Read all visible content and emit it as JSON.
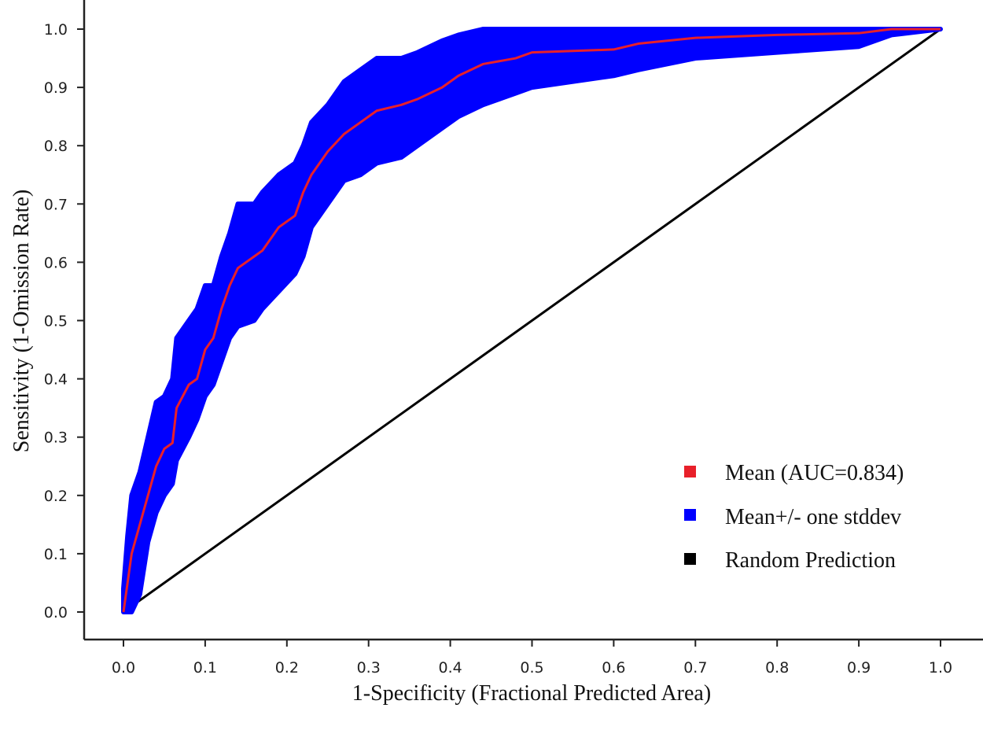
{
  "chart_data": {
    "type": "line",
    "xlabel": "1-Specificity (Fractional Predicted Area)",
    "ylabel": "Sensitivity (1-Omission Rate)",
    "xlim": [
      0,
      1
    ],
    "ylim": [
      0,
      1
    ],
    "x_ticks": [
      "0.0",
      "0.1",
      "0.2",
      "0.3",
      "0.4",
      "0.5",
      "0.6",
      "0.7",
      "0.8",
      "0.9",
      "1.0"
    ],
    "y_ticks": [
      "0.0",
      "0.1",
      "0.2",
      "0.3",
      "0.4",
      "0.5",
      "0.6",
      "0.7",
      "0.8",
      "0.9",
      "1.0"
    ],
    "grid": false,
    "legend_position": "bottom-right",
    "colors": {
      "mean": "#e8202a",
      "band": "#0000ff",
      "random": "#000000"
    },
    "series": [
      {
        "name": "Mean (AUC=0.834)",
        "x": [
          0,
          0.005,
          0.01,
          0.02,
          0.03,
          0.04,
          0.05,
          0.06,
          0.065,
          0.08,
          0.09,
          0.1,
          0.11,
          0.12,
          0.13,
          0.14,
          0.16,
          0.17,
          0.19,
          0.21,
          0.22,
          0.23,
          0.25,
          0.27,
          0.29,
          0.31,
          0.34,
          0.36,
          0.39,
          0.41,
          0.44,
          0.48,
          0.5,
          0.6,
          0.63,
          0.7,
          0.8,
          0.9,
          0.94,
          1.0
        ],
        "y": [
          0,
          0.05,
          0.1,
          0.15,
          0.2,
          0.25,
          0.28,
          0.29,
          0.35,
          0.39,
          0.4,
          0.45,
          0.47,
          0.52,
          0.56,
          0.59,
          0.61,
          0.62,
          0.66,
          0.68,
          0.72,
          0.75,
          0.79,
          0.82,
          0.84,
          0.86,
          0.87,
          0.88,
          0.9,
          0.92,
          0.94,
          0.95,
          0.96,
          0.965,
          0.975,
          0.985,
          0.99,
          0.993,
          1.0,
          1.0
        ]
      },
      {
        "name": "Mean+/- one stddev",
        "x": [
          0,
          0.005,
          0.01,
          0.02,
          0.03,
          0.04,
          0.05,
          0.06,
          0.065,
          0.08,
          0.09,
          0.1,
          0.11,
          0.12,
          0.13,
          0.14,
          0.16,
          0.17,
          0.19,
          0.21,
          0.22,
          0.23,
          0.25,
          0.27,
          0.29,
          0.31,
          0.34,
          0.36,
          0.39,
          0.41,
          0.44,
          0.48,
          0.5,
          0.6,
          0.63,
          0.7,
          0.8,
          0.9,
          0.94,
          1.0
        ],
        "lower": [
          0,
          0,
          0,
          0.03,
          0.12,
          0.17,
          0.2,
          0.22,
          0.26,
          0.3,
          0.33,
          0.37,
          0.39,
          0.43,
          0.47,
          0.49,
          0.5,
          0.52,
          0.55,
          0.58,
          0.61,
          0.66,
          0.7,
          0.74,
          0.75,
          0.77,
          0.78,
          0.8,
          0.83,
          0.85,
          0.87,
          0.89,
          0.9,
          0.92,
          0.93,
          0.95,
          0.96,
          0.97,
          0.99,
          1.0
        ],
        "upper": [
          0.04,
          0.13,
          0.2,
          0.24,
          0.3,
          0.36,
          0.37,
          0.4,
          0.47,
          0.5,
          0.52,
          0.56,
          0.56,
          0.61,
          0.65,
          0.7,
          0.7,
          0.72,
          0.75,
          0.77,
          0.8,
          0.84,
          0.87,
          0.91,
          0.93,
          0.95,
          0.95,
          0.96,
          0.98,
          0.99,
          1.0,
          1.0,
          1.0,
          1.0,
          1.0,
          1.0,
          1.0,
          1.0,
          1.0,
          1.0
        ]
      },
      {
        "name": "Random Prediction",
        "x": [
          0,
          1
        ],
        "y": [
          0,
          1
        ]
      }
    ]
  }
}
